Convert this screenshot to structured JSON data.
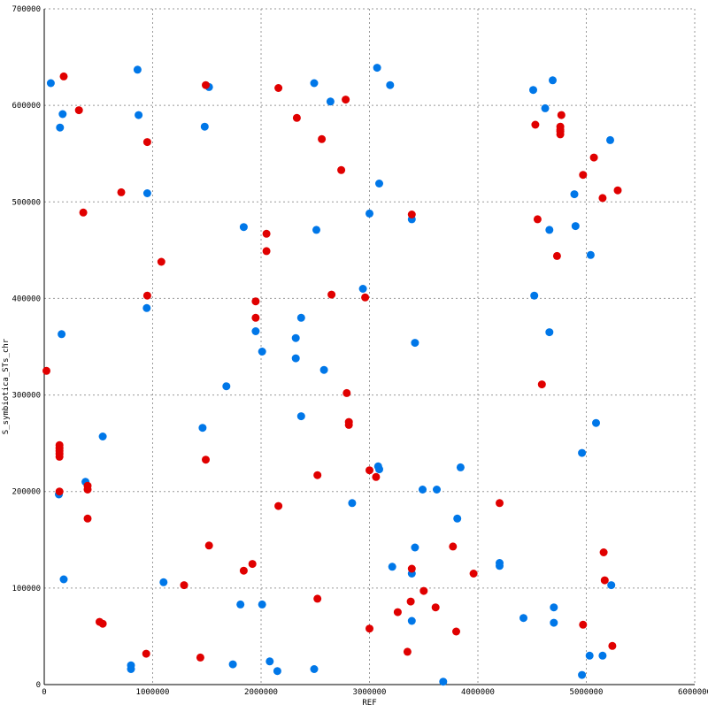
{
  "chart_data": {
    "type": "scatter",
    "xlabel": "REF",
    "ylabel": "S_symbiotica_STs_chr",
    "xlim": [
      0,
      6000000
    ],
    "ylim": [
      0,
      700000
    ],
    "grid": true,
    "x_ticks": [
      "0",
      "1000000",
      "2000000",
      "3000000",
      "4000000",
      "5000000",
      "6000000"
    ],
    "y_ticks": [
      "0",
      "100000",
      "200000",
      "300000",
      "400000",
      "500000",
      "600000",
      "700000"
    ],
    "series": [
      {
        "color": "#0077e8",
        "points": [
          [
            60000,
            623000
          ],
          [
            170000,
            591000
          ],
          [
            145000,
            577000
          ],
          [
            860000,
            637000
          ],
          [
            870000,
            590000
          ],
          [
            950000,
            509000
          ],
          [
            945000,
            390000
          ],
          [
            160000,
            363000
          ],
          [
            135000,
            197000
          ],
          [
            380000,
            210000
          ],
          [
            540000,
            257000
          ],
          [
            180000,
            109000
          ],
          [
            800000,
            20000
          ],
          [
            800000,
            16000
          ],
          [
            1480000,
            578000
          ],
          [
            1520000,
            619000
          ],
          [
            1840000,
            474000
          ],
          [
            1950000,
            366000
          ],
          [
            2010000,
            345000
          ],
          [
            1680000,
            309000
          ],
          [
            1460000,
            266000
          ],
          [
            1100000,
            106000
          ],
          [
            1810000,
            83000
          ],
          [
            2010000,
            83000
          ],
          [
            1740000,
            21000
          ],
          [
            2080000,
            24000
          ],
          [
            2150000,
            14000
          ],
          [
            2490000,
            623000
          ],
          [
            2640000,
            604000
          ],
          [
            2510000,
            471000
          ],
          [
            2370000,
            380000
          ],
          [
            2320000,
            359000
          ],
          [
            2320000,
            338000
          ],
          [
            2580000,
            326000
          ],
          [
            2370000,
            278000
          ],
          [
            2840000,
            188000
          ],
          [
            2490000,
            16000
          ],
          [
            3070000,
            639000
          ],
          [
            3190000,
            621000
          ],
          [
            3090000,
            519000
          ],
          [
            3000000,
            488000
          ],
          [
            2940000,
            410000
          ],
          [
            3390000,
            482000
          ],
          [
            3420000,
            354000
          ],
          [
            3080000,
            226000
          ],
          [
            3090000,
            223000
          ],
          [
            3490000,
            202000
          ],
          [
            3620000,
            202000
          ],
          [
            3840000,
            225000
          ],
          [
            3810000,
            172000
          ],
          [
            3420000,
            142000
          ],
          [
            3210000,
            122000
          ],
          [
            3390000,
            115000
          ],
          [
            3390000,
            66000
          ],
          [
            3680000,
            3000
          ],
          [
            4200000,
            126000
          ],
          [
            4200000,
            123000
          ],
          [
            4510000,
            616000
          ],
          [
            4690000,
            626000
          ],
          [
            4620000,
            597000
          ],
          [
            4890000,
            508000
          ],
          [
            4660000,
            471000
          ],
          [
            4900000,
            475000
          ],
          [
            5040000,
            445000
          ],
          [
            4520000,
            403000
          ],
          [
            4660000,
            365000
          ],
          [
            5220000,
            564000
          ],
          [
            5090000,
            271000
          ],
          [
            4960000,
            240000
          ],
          [
            5230000,
            103000
          ],
          [
            4700000,
            80000
          ],
          [
            4700000,
            64000
          ],
          [
            4420000,
            69000
          ],
          [
            5030000,
            30000
          ],
          [
            5150000,
            30000
          ],
          [
            4960000,
            10000
          ]
        ]
      },
      {
        "color": "#e00000",
        "points": [
          [
            180000,
            630000
          ],
          [
            320000,
            595000
          ],
          [
            950000,
            562000
          ],
          [
            710000,
            510000
          ],
          [
            360000,
            489000
          ],
          [
            950000,
            403000
          ],
          [
            20000,
            325000
          ],
          [
            140000,
            248000
          ],
          [
            140000,
            245000
          ],
          [
            140000,
            242000
          ],
          [
            140000,
            239000
          ],
          [
            140000,
            236000
          ],
          [
            140000,
            200000
          ],
          [
            400000,
            206000
          ],
          [
            400000,
            202000
          ],
          [
            400000,
            172000
          ],
          [
            510000,
            65000
          ],
          [
            540000,
            63000
          ],
          [
            940000,
            32000
          ],
          [
            1490000,
            621000
          ],
          [
            1080000,
            438000
          ],
          [
            1490000,
            233000
          ],
          [
            1520000,
            144000
          ],
          [
            1290000,
            103000
          ],
          [
            1440000,
            28000
          ],
          [
            2160000,
            618000
          ],
          [
            2330000,
            587000
          ],
          [
            2560000,
            565000
          ],
          [
            2740000,
            533000
          ],
          [
            2050000,
            467000
          ],
          [
            2050000,
            449000
          ],
          [
            1950000,
            397000
          ],
          [
            1950000,
            380000
          ],
          [
            2650000,
            404000
          ],
          [
            2780000,
            606000
          ],
          [
            2960000,
            401000
          ],
          [
            2790000,
            302000
          ],
          [
            2810000,
            272000
          ],
          [
            2810000,
            269000
          ],
          [
            2520000,
            217000
          ],
          [
            2160000,
            185000
          ],
          [
            1840000,
            118000
          ],
          [
            1920000,
            125000
          ],
          [
            2520000,
            89000
          ],
          [
            3000000,
            222000
          ],
          [
            3060000,
            215000
          ],
          [
            3390000,
            487000
          ],
          [
            3390000,
            120000
          ],
          [
            3500000,
            97000
          ],
          [
            3380000,
            86000
          ],
          [
            3260000,
            75000
          ],
          [
            3610000,
            80000
          ],
          [
            3770000,
            143000
          ],
          [
            3960000,
            115000
          ],
          [
            3800000,
            55000
          ],
          [
            3000000,
            58000
          ],
          [
            3350000,
            34000
          ],
          [
            4200000,
            188000
          ],
          [
            4530000,
            580000
          ],
          [
            4770000,
            590000
          ],
          [
            4760000,
            578000
          ],
          [
            4760000,
            575000
          ],
          [
            4760000,
            573000
          ],
          [
            4760000,
            570000
          ],
          [
            4550000,
            482000
          ],
          [
            4730000,
            444000
          ],
          [
            4590000,
            311000
          ],
          [
            5070000,
            546000
          ],
          [
            4970000,
            528000
          ],
          [
            5290000,
            512000
          ],
          [
            5150000,
            504000
          ],
          [
            5160000,
            137000
          ],
          [
            5170000,
            108000
          ],
          [
            4970000,
            62000
          ],
          [
            5240000,
            40000
          ]
        ]
      }
    ]
  }
}
